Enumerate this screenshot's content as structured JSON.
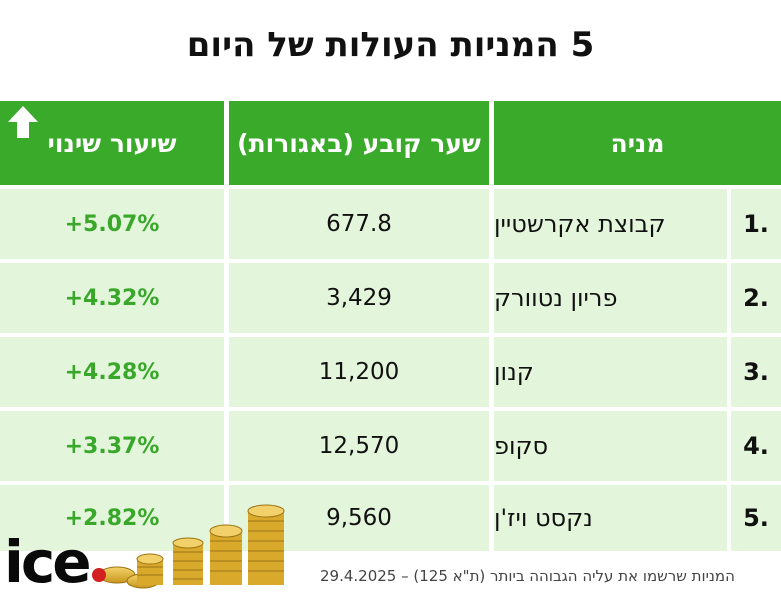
{
  "title": "5 המניות העולות של היום",
  "headers": {
    "change": "שיעור שינוי",
    "price": "שער קובע (באגורות)",
    "stock": "מניה"
  },
  "rows": [
    {
      "num": "1.",
      "name": "קבוצת אקרשטיין",
      "price": "677.8",
      "change": "+5.07%"
    },
    {
      "num": "2.",
      "name": "פריון נטוורק",
      "price": "3,429",
      "change": "+4.32%"
    },
    {
      "num": "3.",
      "name": "קנון",
      "price": "11,200",
      "change": "+4.28%"
    },
    {
      "num": "4.",
      "name": "סקופ",
      "price": "12,570",
      "change": "+3.37%"
    },
    {
      "num": "5.",
      "name": "נקסט ויז'ן",
      "price": "9,560",
      "change": "+2.82%"
    }
  ],
  "footer": "המניות שרשמו את עליה הגבוהה ביותר (ת\"א 125) – 29.4.2025",
  "logo": "ice",
  "colors": {
    "header_green": "#3aaa2a",
    "row_bg": "#e3f6dc",
    "pct_green": "#39a82a",
    "logo_dot": "#d21f1f"
  },
  "icons": {
    "arrow": "up-arrow-icon",
    "coins": "coins-icon"
  }
}
